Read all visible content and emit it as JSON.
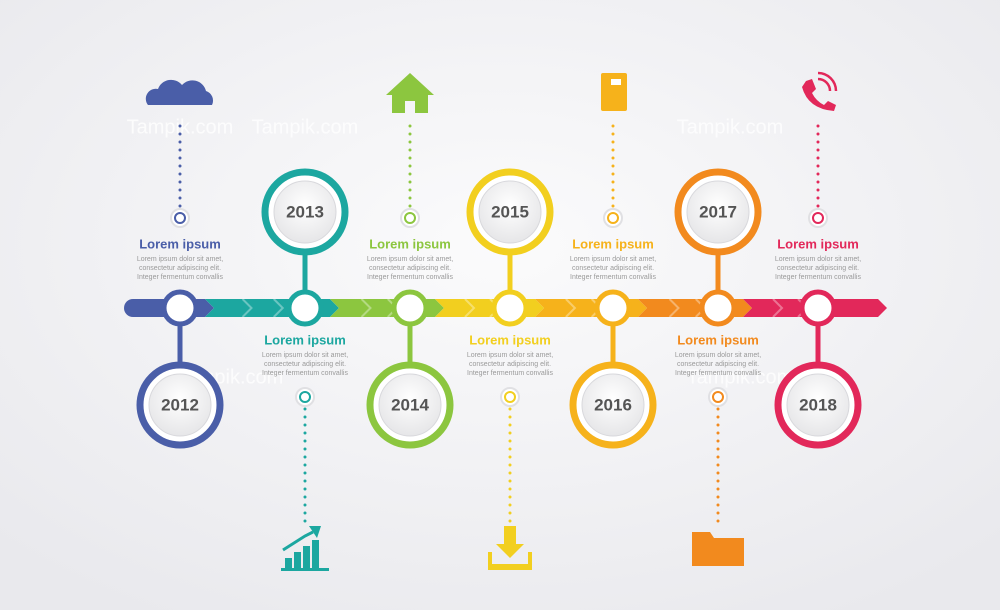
{
  "watermark": "Tampik.com",
  "milestones": [
    {
      "year": "2012",
      "title": "Lorem ipsum",
      "body": [
        "Lorem ipsum dolor sit amet,",
        "consectetur adipiscing elit.",
        "Integer fermentum convallis"
      ],
      "color": "#4a5ea8"
    },
    {
      "year": "2013",
      "title": "Lorem ipsum",
      "body": [
        "Lorem ipsum dolor sit amet,",
        "consectetur adipiscing elit.",
        "Integer fermentum convallis"
      ],
      "color": "#1ca7a0"
    },
    {
      "year": "2014",
      "title": "Lorem ipsum",
      "body": [
        "Lorem ipsum dolor sit amet,",
        "consectetur adipiscing elit.",
        "Integer fermentum convallis"
      ],
      "color": "#8cc63f"
    },
    {
      "year": "2015",
      "title": "Lorem ipsum",
      "body": [
        "Lorem ipsum dolor sit amet,",
        "consectetur adipiscing elit.",
        "Integer fermentum convallis"
      ],
      "color": "#f2cf1f"
    },
    {
      "year": "2016",
      "title": "Lorem ipsum",
      "body": [
        "Lorem ipsum dolor sit amet,",
        "consectetur adipiscing elit.",
        "Integer fermentum convallis"
      ],
      "color": "#f6b21b"
    },
    {
      "year": "2017",
      "title": "Lorem ipsum",
      "body": [
        "Lorem ipsum dolor sit amet,",
        "consectetur adipiscing elit.",
        "Integer fermentum convallis"
      ],
      "color": "#f28a1e"
    },
    {
      "year": "2018",
      "title": "Lorem ipsum",
      "body": [
        "Lorem ipsum dolor sit amet,",
        "consectetur adipiscing elit.",
        "Integer fermentum convallis"
      ],
      "color": "#e2285a"
    }
  ]
}
